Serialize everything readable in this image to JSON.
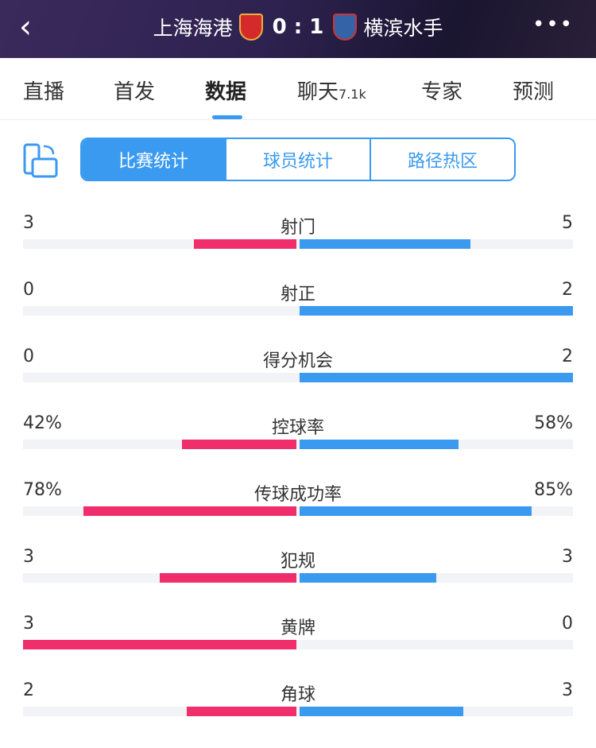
{
  "header": {
    "back": "‹",
    "home_team": "上海海港",
    "away_team": "横滨水手",
    "score": "0 : 1",
    "more": "•••",
    "home_color": "#d42a2a",
    "away_color": "#3563a8"
  },
  "tabs": [
    {
      "label": "直播"
    },
    {
      "label": "首发"
    },
    {
      "label": "数据",
      "active": true
    },
    {
      "label": "聊天",
      "badge": "7.1k"
    },
    {
      "label": "专家"
    },
    {
      "label": "预测"
    }
  ],
  "segments": [
    "比赛统计",
    "球员统计",
    "路径热区"
  ],
  "colors": {
    "home": "#ef2e6b",
    "away": "#3a9af0"
  },
  "stats": [
    {
      "label": "射门",
      "home": "3",
      "away": "5",
      "home_share": 0.375,
      "away_share": 0.625
    },
    {
      "label": "射正",
      "home": "0",
      "away": "2",
      "home_share": 0,
      "away_share": 1
    },
    {
      "label": "得分机会",
      "home": "0",
      "away": "2",
      "home_share": 0,
      "away_share": 1
    },
    {
      "label": "控球率",
      "home": "42%",
      "away": "58%",
      "home_share": 0.42,
      "away_share": 0.58
    },
    {
      "label": "传球成功率",
      "home": "78%",
      "away": "85%",
      "home_share": 0.78,
      "away_share": 0.85
    },
    {
      "label": "犯规",
      "home": "3",
      "away": "3",
      "home_share": 0.5,
      "away_share": 0.5
    },
    {
      "label": "黄牌",
      "home": "3",
      "away": "0",
      "home_share": 1,
      "away_share": 0
    },
    {
      "label": "角球",
      "home": "2",
      "away": "3",
      "home_share": 0.4,
      "away_share": 0.6
    }
  ]
}
